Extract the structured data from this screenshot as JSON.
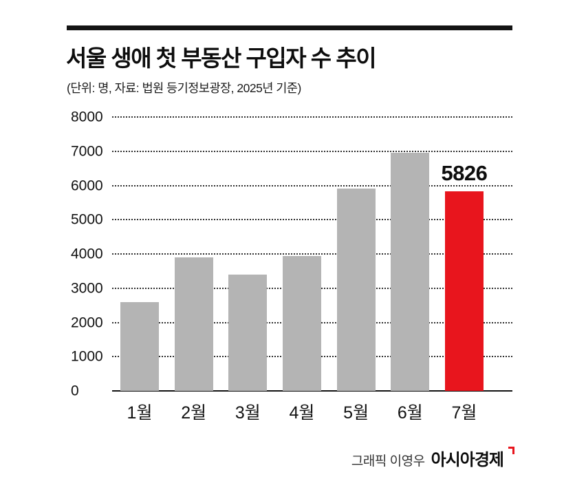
{
  "header": {
    "title": "서울 생애 첫 부동산 구입자 수 추이",
    "subtitle": "(단위: 명, 자료: 법원 등기정보광장, 2025년 기준)"
  },
  "chart_data": {
    "type": "bar",
    "title": "서울 생애 첫 부동산 구입자 수 추이",
    "unit_note": "(단위: 명, 자료: 법원 등기정보광장, 2025년 기준)",
    "categories": [
      "1월",
      "2월",
      "3월",
      "4월",
      "5월",
      "6월",
      "7월"
    ],
    "values": [
      2600,
      3900,
      3400,
      3950,
      5900,
      6950,
      5826
    ],
    "highlight_index": 6,
    "highlight_label": "5826",
    "ylim": [
      0,
      8000
    ],
    "ytick_step": 1000,
    "bar_color": "#b4b4b4",
    "highlight_color": "#e8151d",
    "grid": "dotted horizontal",
    "legend": "none"
  },
  "footer": {
    "credit": "그래픽 이영우",
    "brand": "아시아경제"
  }
}
